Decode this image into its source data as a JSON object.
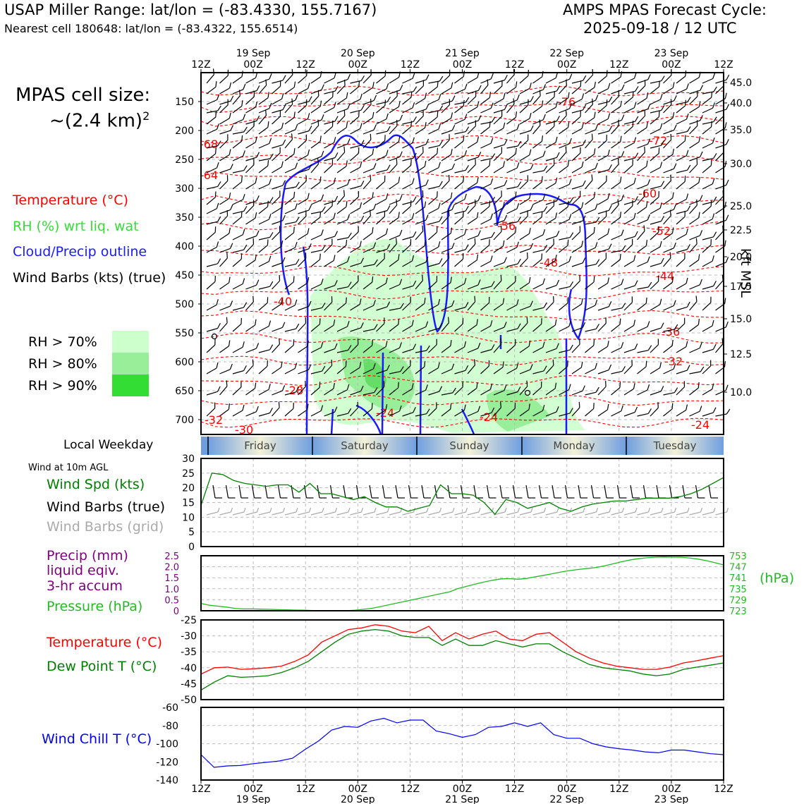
{
  "header": {
    "location": "USAP Miller Range: lat/lon = (-83.4330, 155.7167)",
    "nearest_cell": "Nearest cell 180648: lat/lon = (-83.4322, 155.6514)",
    "cycle_title": "AMPS MPAS Forecast Cycle:",
    "cycle_time": "2025-09-18 / 12 UTC"
  },
  "side": {
    "cell_size_label": "MPAS cell size:",
    "cell_size_value": "~(2.4 km)",
    "cell_size_exp": "2",
    "legend": {
      "temperature": "Temperature (°C)",
      "rh": "RH (%) wrt liq. wat",
      "cloud": "Cloud/Precip outline",
      "wind": "Wind Barbs (kts) (true)"
    },
    "rh_levels": [
      "RH > 70%",
      "RH > 80%",
      "RH > 90%"
    ],
    "weekday_label": "Local Weekday",
    "wind10_label": "Wind at 10m AGL",
    "wind_panel_legend": {
      "speed": "Wind Spd (kts)",
      "barbs_true": "Wind Barbs (true)",
      "barbs_grid": "Wind Barbs (grid)"
    },
    "precip_legend": {
      "line1": "Precip (mm)",
      "line2": "liquid eqiv.",
      "line3": "3-hr accum",
      "pressure": "Pressure (hPa)"
    },
    "temp_legend": {
      "temp": "Temperature (°C)",
      "dew": "Dew Point T (°C)"
    },
    "windchill_legend": "Wind Chill T (°C)"
  },
  "colors": {
    "temperature": "#ff0000",
    "rh_text": "#33dd33",
    "cloud": "#1a1aff",
    "dewpoint": "#008000",
    "wind_speed": "#008000",
    "grid_barbs": "#aaaaaa",
    "precip": "#800080",
    "pressure": "#22bb22",
    "windchill": "#0000ff",
    "rh70": "#ccffcc",
    "rh80": "#99ee99",
    "rh90": "#33dd33"
  },
  "time_axis": {
    "top_ticks": [
      "12Z",
      "00Z",
      "12Z",
      "00Z",
      "12Z",
      "00Z",
      "12Z",
      "00Z",
      "12Z",
      "00Z",
      "12Z"
    ],
    "top_dates": [
      "19 Sep",
      "20 Sep",
      "21 Sep",
      "22 Sep",
      "23 Sep"
    ],
    "bottom_ticks": [
      "12Z",
      "00Z",
      "12Z",
      "00Z",
      "12Z",
      "00Z",
      "12Z",
      "00Z",
      "12Z",
      "00Z",
      "12Z"
    ],
    "bottom_dates": [
      "19 Sep",
      "20 Sep",
      "21 Sep",
      "22 Sep",
      "23 Sep"
    ],
    "weekdays": [
      "Friday",
      "Saturday",
      "Sunday",
      "Monday",
      "Tuesday"
    ]
  },
  "chart_data": [
    {
      "type": "heatmap",
      "title": "",
      "ylabel_right": "kft MSL",
      "pressure_ticks": [
        150,
        200,
        250,
        300,
        350,
        400,
        450,
        500,
        550,
        600,
        650,
        700
      ],
      "kft_ticks": [
        "45.0",
        "40.0",
        "35.0",
        "30.0",
        "25.0",
        "22.5",
        "20.0",
        "17.5",
        "15.0",
        "12.5",
        "10.0"
      ],
      "temperature_contour_labels": [
        "-76",
        "-72",
        "-68",
        "-64",
        "-60",
        "-56",
        "-52",
        "-48",
        "-44",
        "-40",
        "-36",
        "-32",
        "-28",
        "-24",
        "-24",
        "-24",
        "-32",
        "-30"
      ]
    },
    {
      "type": "line",
      "title": "",
      "ylim": [
        0,
        30
      ],
      "y_ticks": [
        "0",
        "5",
        "10",
        "15",
        "20",
        "25",
        "30"
      ],
      "series": [
        {
          "name": "Wind Spd (kts)",
          "values": [
            14,
            25,
            24.5,
            22.5,
            21.5,
            21,
            20.5,
            21,
            21,
            18.5,
            21.5,
            18,
            18,
            17,
            16,
            17,
            15,
            13.5,
            13.5,
            12,
            13,
            14,
            21,
            18,
            18,
            17.5,
            15,
            11,
            16,
            15,
            13,
            14,
            15,
            13,
            12,
            13.5,
            14.5,
            15,
            15.5,
            15.5,
            16,
            16.5,
            16.5,
            16.5,
            17,
            18,
            19.5,
            21.5,
            23.5
          ]
        }
      ]
    },
    {
      "type": "line",
      "title": "",
      "y_ticks_left": [
        "0",
        "0.5",
        "1.0",
        "1.5",
        "2.0",
        "2.5"
      ],
      "y_ticks_right": [
        "723",
        "729",
        "735",
        "741",
        "747",
        "753"
      ],
      "ylabel_right": "(hPa)",
      "series": [
        {
          "name": "Pressure (hPa)",
          "values": [
            727.0,
            726.0,
            725.5,
            725.0,
            724.3,
            724.0,
            724.0,
            723.9,
            723.8,
            723.6,
            723.5,
            723.4,
            723.3,
            723.1,
            723.0,
            723.1,
            723.1,
            723.0,
            723.3,
            723.8,
            724.4,
            725.3,
            726.3,
            727.3,
            728.3,
            729.3,
            730.3,
            731.3,
            732.3,
            733.3,
            735.1,
            736.3,
            737.5,
            738.6,
            739.6,
            740.4,
            740.5,
            740.2,
            740.6,
            741.5,
            742.3,
            743.2,
            744.1,
            744.9,
            745.5,
            746.0,
            746.5,
            747.4,
            748.5,
            749.6,
            750.6,
            751.4,
            751.9,
            752.2,
            752.3,
            752.2,
            752.2,
            751.8,
            751.2,
            750.3,
            749.2,
            748.0
          ]
        }
      ]
    },
    {
      "type": "line",
      "title": "",
      "ylim": [
        -50,
        -25
      ],
      "y_ticks": [
        "-25",
        "-30",
        "-35",
        "-40",
        "-45",
        "-50"
      ],
      "series": [
        {
          "name": "Temperature (°C)",
          "values": [
            -42,
            -40,
            -39.8,
            -40.5,
            -40.3,
            -40,
            -39.5,
            -38,
            -36,
            -32,
            -30,
            -28,
            -27.5,
            -26.5,
            -27,
            -28.5,
            -29,
            -27,
            -31.5,
            -29,
            -31,
            -29.5,
            -28.5,
            -31,
            -31.5,
            -29.5,
            -29,
            -32,
            -35,
            -37,
            -38.5,
            -39.5,
            -40,
            -40.5,
            -40.5,
            -39.8,
            -38.5,
            -37.8,
            -37,
            -36.2
          ]
        },
        {
          "name": "Dew Point T (°C)",
          "values": [
            -47,
            -44.5,
            -42.5,
            -43,
            -42.8,
            -42.5,
            -41.5,
            -40,
            -38,
            -35,
            -32,
            -29.5,
            -28.5,
            -28,
            -28.5,
            -30,
            -30.5,
            -30.5,
            -33,
            -31,
            -33,
            -33,
            -31.5,
            -32.5,
            -33.5,
            -32.5,
            -32.5,
            -35,
            -37,
            -39,
            -40,
            -40.5,
            -41,
            -42,
            -42.5,
            -42,
            -40.5,
            -39.8,
            -39.2,
            -38.5
          ]
        }
      ]
    },
    {
      "type": "line",
      "title": "",
      "ylim": [
        -140,
        -60
      ],
      "y_ticks": [
        "-60",
        "-80",
        "-100",
        "-120",
        "-140"
      ],
      "series": [
        {
          "name": "Wind Chill T (°C)",
          "values": [
            -112,
            -126,
            -124.5,
            -124,
            -122,
            -120.5,
            -119,
            -116,
            -106,
            -97,
            -85,
            -81,
            -82,
            -75,
            -72,
            -77,
            -74,
            -74,
            -86,
            -89,
            -93,
            -90,
            -82,
            -81,
            -77,
            -81,
            -77,
            -90,
            -94,
            -94,
            -100,
            -103.5,
            -105.5,
            -107,
            -109,
            -110,
            -107,
            -107,
            -109,
            -111,
            -112
          ]
        }
      ]
    }
  ]
}
